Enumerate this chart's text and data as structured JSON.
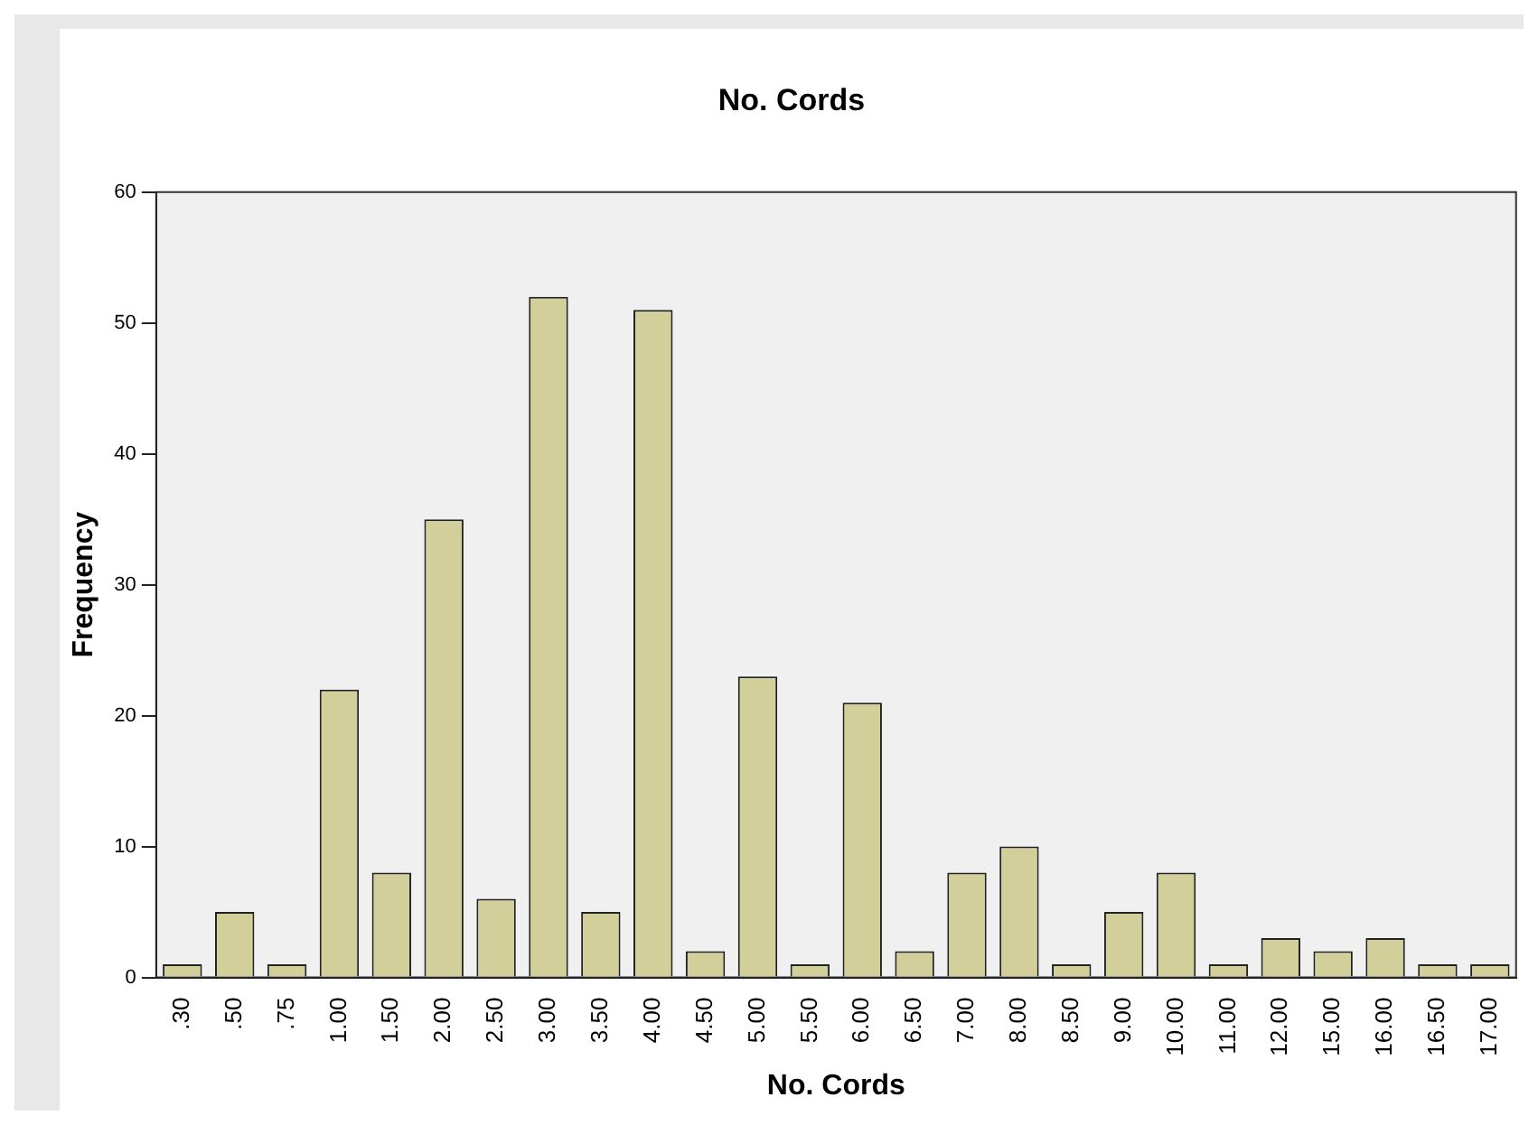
{
  "chart_data": {
    "type": "bar",
    "title": "No. Cords",
    "xlabel": "No. Cords",
    "ylabel": "Frequency",
    "categories": [
      ".30",
      ".50",
      ".75",
      "1.00",
      "1.50",
      "2.00",
      "2.50",
      "3.00",
      "3.50",
      "4.00",
      "4.50",
      "5.00",
      "5.50",
      "6.00",
      "6.50",
      "7.00",
      "8.00",
      "8.50",
      "9.00",
      "10.00",
      "11.00",
      "12.00",
      "15.00",
      "16.00",
      "16.50",
      "17.00"
    ],
    "values": [
      1,
      5,
      1,
      22,
      8,
      35,
      6,
      52,
      5,
      51,
      2,
      23,
      1,
      21,
      2,
      8,
      10,
      1,
      5,
      8,
      1,
      3,
      2,
      3,
      1,
      1
    ],
    "color": "#d2cf9a",
    "ylim": [
      0,
      60
    ],
    "yticks": [
      0,
      10,
      20,
      30,
      40,
      50,
      60
    ],
    "grid": false,
    "legend": false
  }
}
